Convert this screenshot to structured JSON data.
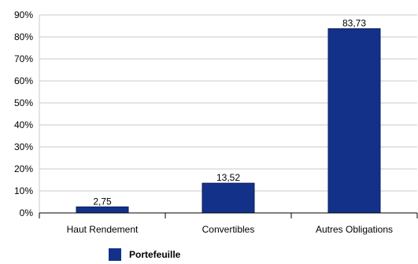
{
  "chart_data": {
    "type": "bar",
    "categories": [
      "Haut Rendement",
      "Convertibles",
      "Autres Obligations"
    ],
    "series": [
      {
        "name": "Portefeuille",
        "values": [
          2.75,
          13.52,
          83.73
        ],
        "color": "#14318a"
      }
    ],
    "data_labels": [
      "2,75",
      "13,52",
      "83,73"
    ],
    "ylim": [
      0,
      90
    ],
    "y_ticks": [
      0,
      10,
      20,
      30,
      40,
      50,
      60,
      70,
      80,
      90
    ],
    "y_tick_labels": [
      "0%",
      "10%",
      "20%",
      "30%",
      "40%",
      "50%",
      "60%",
      "70%",
      "80%",
      "90%"
    ],
    "grid": true,
    "legend_position": "bottom-left"
  }
}
